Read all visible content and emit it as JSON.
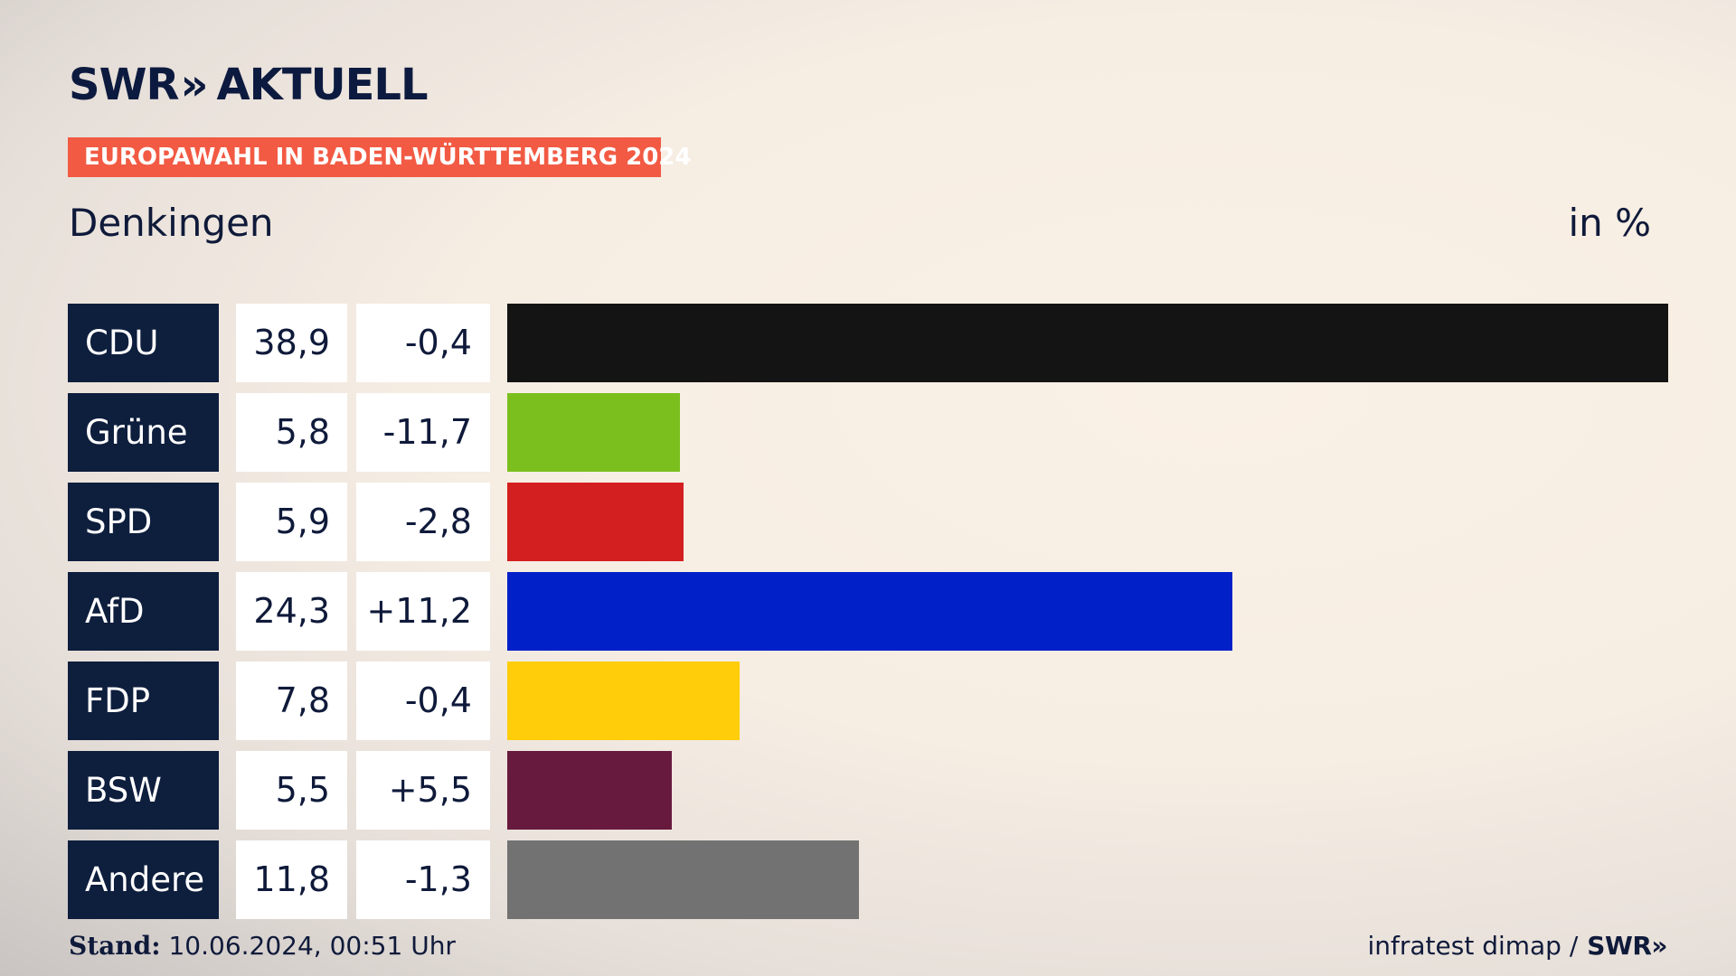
{
  "header": {
    "brand_left": "SWR",
    "brand_chevrons": "»",
    "brand_right": "AKTUELL",
    "badge": "EUROPAWAHL IN BADEN-WÜRTTEMBERG 2024",
    "region": "Denkingen",
    "unit": "in %"
  },
  "colors": {
    "badge": "#f25a43",
    "party_cell": "#0e1e3d"
  },
  "chart_data": {
    "type": "bar",
    "orientation": "horizontal",
    "title": "Denkingen",
    "unit_label": "in %",
    "categories": [
      "CDU",
      "Grüne",
      "SPD",
      "AfD",
      "FDP",
      "BSW",
      "Andere"
    ],
    "values": [
      38.9,
      5.8,
      5.9,
      24.3,
      7.8,
      5.5,
      11.8
    ],
    "values_label": [
      "38,9",
      "5,8",
      "5,9",
      "24,3",
      "7,8",
      "5,5",
      "11,8"
    ],
    "diff_label": [
      "-0,4",
      "-11,7",
      "-2,8",
      "+11,2",
      "-0,4",
      "+5,5",
      "-1,3"
    ],
    "colors": [
      "#141414",
      "#7bbf1e",
      "#d41f20",
      "#0220c8",
      "#ffcd0a",
      "#681a3e",
      "#727272"
    ],
    "xlim": [
      0,
      38.9
    ],
    "grid": false,
    "legend": "none"
  },
  "footer": {
    "stand_label": "Stand:",
    "stand_value": "10.06.2024, 00:51 Uhr",
    "source": "infratest dimap /",
    "source_brand": "SWR»"
  }
}
